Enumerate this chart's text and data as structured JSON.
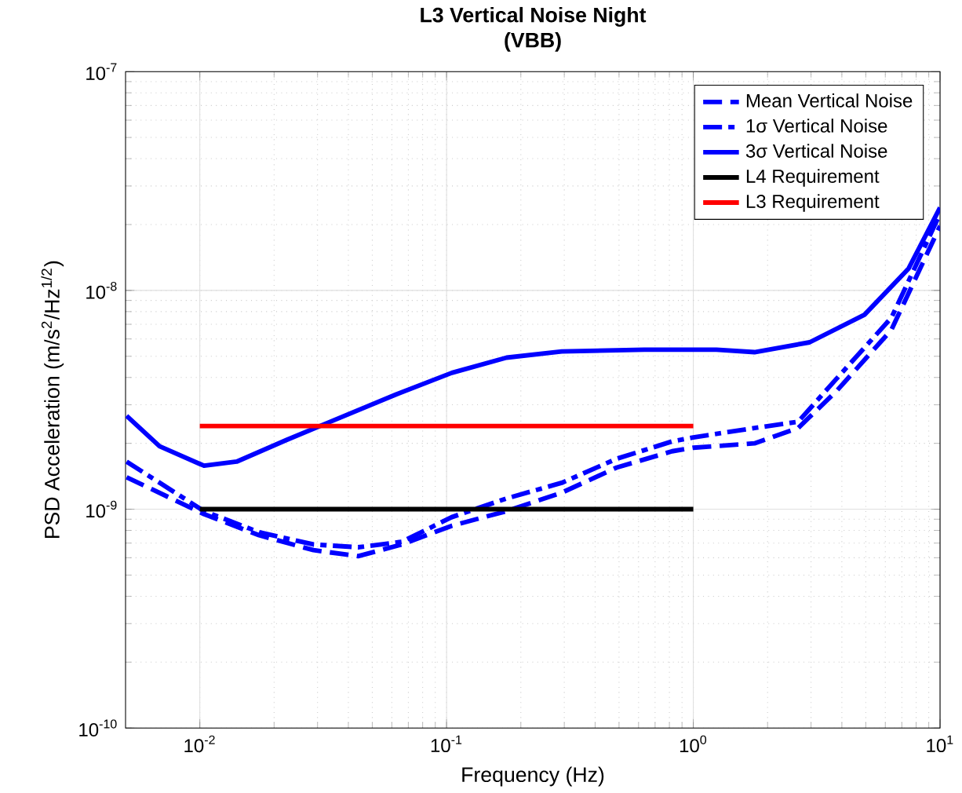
{
  "chart_data": {
    "type": "line",
    "title": "L3 Vertical Noise Night",
    "subtitle": "(VBB)",
    "xlabel": "Frequency (Hz)",
    "ylabel": "PSD Acceleration (m/s$^{2}$/Hz$^{1/2}$)",
    "log": "xy",
    "grid": true,
    "legend": "top right",
    "xlim": [
      0.005,
      10
    ],
    "ylim": [
      1e-10,
      1e-07
    ],
    "xticks": [
      {
        "value": 0.01,
        "label": "10$^{-2}$"
      },
      {
        "value": 0.1,
        "label": "10$^{-1}$"
      },
      {
        "value": 1,
        "label": "10$^{0}$"
      },
      {
        "value": 10,
        "label": "10$^{1}$"
      }
    ],
    "yticks": [
      {
        "value": 1e-10,
        "label": "10$^{-10}$"
      },
      {
        "value": 1e-09,
        "label": "10$^{-9}$"
      },
      {
        "value": 1e-08,
        "label": "10$^{-8}$"
      },
      {
        "value": 1e-07,
        "label": "10$^{-7}$"
      }
    ],
    "series": [
      {
        "name": "Mean Vertical Noise",
        "color": "#0000ff",
        "line_style": "dashed",
        "x": [
          0.00505,
          0.0104,
          0.0174,
          0.0289,
          0.0438,
          0.0659,
          0.105,
          0.175,
          0.293,
          0.489,
          0.82,
          1.0,
          1.77,
          2.66,
          3.8,
          6.35,
          10
        ],
        "values": [
          1.4e-09,
          9.5e-10,
          7.6e-10,
          6.5e-10,
          6.1e-10,
          6.9e-10,
          8.4e-10,
          9.8e-10,
          1.19e-09,
          1.55e-09,
          1.84e-09,
          1.91e-09,
          2e-09,
          2.35e-09,
          3.46e-09,
          6.6e-09,
          1.97e-08
        ]
      },
      {
        "name": "1σ Vertical Noise",
        "color": "#0000ff",
        "line_style": "dashdot",
        "x": [
          0.00505,
          0.0104,
          0.0174,
          0.0289,
          0.0438,
          0.0659,
          0.105,
          0.175,
          0.293,
          0.489,
          0.82,
          1.0,
          1.77,
          2.66,
          3.8,
          6.35,
          10
        ],
        "values": [
          1.65e-09,
          9.8e-10,
          7.85e-10,
          6.9e-10,
          6.7e-10,
          7.1e-10,
          9.2e-10,
          1.12e-09,
          1.32e-09,
          1.7e-09,
          2.04e-09,
          2.13e-09,
          2.35e-09,
          2.51e-09,
          3.94e-09,
          7.5e-09,
          2.24e-08
        ]
      },
      {
        "name": "3σ Vertical Noise",
        "color": "#0000ff",
        "line_style": "solid",
        "x": [
          0.00505,
          0.00687,
          0.0104,
          0.0141,
          0.0224,
          0.0338,
          0.0626,
          0.105,
          0.175,
          0.293,
          0.633,
          1.24,
          1.77,
          2.96,
          4.94,
          7.46,
          10
        ],
        "values": [
          2.67e-09,
          1.94e-09,
          1.58e-09,
          1.65e-09,
          2.07e-09,
          2.51e-09,
          3.35e-09,
          4.2e-09,
          4.93e-09,
          5.26e-09,
          5.36e-09,
          5.36e-09,
          5.22e-09,
          5.79e-09,
          7.74e-09,
          1.26e-08,
          2.39e-08
        ]
      },
      {
        "name": "L4 Requirement",
        "color": "#000000",
        "line_style": "solid",
        "x": [
          0.01,
          1
        ],
        "values": [
          1e-09,
          1e-09
        ]
      },
      {
        "name": "L3 Requirement",
        "color": "#ff0000",
        "line_style": "solid",
        "x": [
          0.01,
          1
        ],
        "values": [
          2.4e-09,
          2.4e-09
        ]
      }
    ]
  }
}
